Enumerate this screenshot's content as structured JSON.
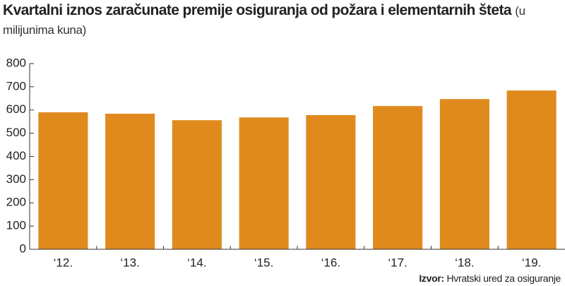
{
  "chart_data": {
    "type": "bar",
    "title": "Kvartalni iznos zaračunate premije osiguranja od požara i elementarnih šteta",
    "subtitle": "(u milijunima kuna)",
    "categories": [
      "‘12.",
      "‘13.",
      "‘14.",
      "‘15.",
      "‘16.",
      "‘17.",
      "‘18.",
      "‘19."
    ],
    "values": [
      590,
      584,
      556,
      568,
      578,
      617,
      647,
      684
    ],
    "color": "#e08a1e",
    "ylim": [
      0,
      800
    ],
    "yticks": [
      0,
      100,
      200,
      300,
      400,
      500,
      600,
      700,
      800
    ],
    "grid": false,
    "source_label": "Izvor:",
    "source": "Hvratski ured za osiguranje"
  }
}
